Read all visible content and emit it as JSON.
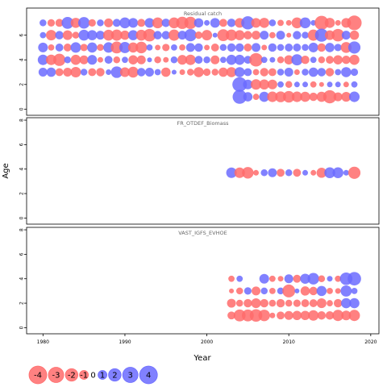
{
  "chart_data": {
    "type": "scatter",
    "xlabel": "Year",
    "ylabel": "Age",
    "xlim": [
      1978,
      2021
    ],
    "x_ticks": [
      1980,
      1990,
      2000,
      2010,
      2020
    ],
    "y_ticks": [
      0,
      2,
      4,
      6,
      8
    ],
    "grid": false,
    "colors": {
      "positive": "#6b6bff",
      "negative": "#ff6b6b"
    },
    "panels": [
      {
        "title": "Residual catch",
        "ylim": [
          -0.5,
          8.2
        ],
        "y_ticks": [
          0,
          2,
          4,
          6
        ],
        "years": [
          1980,
          1981,
          1982,
          1983,
          1984,
          1985,
          1986,
          1987,
          1988,
          1989,
          1990,
          1991,
          1992,
          1993,
          1994,
          1995,
          1996,
          1997,
          1998,
          1999,
          2000,
          2001,
          2002,
          2003,
          2004,
          2005,
          2006,
          2007,
          2008,
          2009,
          2010,
          2011,
          2012,
          2013,
          2014,
          2015,
          2016,
          2017,
          2018
        ],
        "ages": [
          {
            "age": 7,
            "residuals": [
              0.6,
              -0.7,
              -0.8,
              1.8,
              -1.3,
              1.7,
              -0.7,
              0.6,
              -1.0,
              0.8,
              1.5,
              1.2,
              -0.8,
              1.2,
              -1.5,
              0.9,
              -1.5,
              -1.9,
              -1.9,
              1.1,
              0.4,
              1.2,
              -0.8,
              0.9,
              -1.2,
              2.2,
              -1.2,
              -1.3,
              0.6,
              -0.5,
              -0.4,
              -1.5,
              1.5,
              0.4,
              -2.5,
              -1.3,
              -0.4,
              -1.2,
              -2.7
            ]
          },
          {
            "age": 6,
            "residuals": [
              0.5,
              -1.4,
              0.9,
              -1.2,
              -0.6,
              1.5,
              1.3,
              1.0,
              -1.5,
              -1.6,
              -1.1,
              1.3,
              -1.5,
              -2.0,
              0.9,
              0.9,
              -1.6,
              1.0,
              1.9,
              -0.7,
              -1.4,
              0.3,
              -1.8,
              -1.6,
              -1.3,
              -0.9,
              -1.0,
              1.0,
              -0.5,
              1.0,
              -0.3,
              0.9,
              0.6,
              -1.6,
              2.2,
              -1.2,
              -2.0,
              1.0,
              -1.1
            ]
          },
          {
            "age": 5,
            "residuals": [
              1.2,
              -0.5,
              0.8,
              -0.8,
              1.4,
              -0.7,
              1.3,
              -0.6,
              1.4,
              -1.8,
              1.6,
              -1.3,
              -1.7,
              0.5,
              -0.4,
              -0.7,
              0.5,
              -0.5,
              1.0,
              0.9,
              -0.4,
              -0.8,
              0.6,
              0.9,
              0.9,
              -0.8,
              1.0,
              -0.4,
              0.9,
              0.6,
              0.8,
              0.8,
              0.6,
              1.2,
              -0.9,
              1.1,
              0.7,
              -1.5,
              1.9
            ]
          },
          {
            "age": 4,
            "residuals": [
              1.4,
              -1.4,
              -1.9,
              0.6,
              -1.3,
              -1.0,
              1.2,
              -0.4,
              0.8,
              -0.6,
              0.5,
              -1.1,
              -1.0,
              0.3,
              -0.6,
              -0.4,
              0.6,
              -1.2,
              -1.4,
              0.8,
              0.6,
              -1.0,
              0.5,
              1.3,
              1.3,
              0.8,
              -2.3,
              0.5,
              0.4,
              -0.6,
              -1.1,
              1.6,
              -0.9,
              0.5,
              -0.6,
              -0.8,
              -1.1,
              -0.9,
              -1.3
            ]
          },
          {
            "age": 3,
            "residuals": [
              1.0,
              1.1,
              -0.8,
              -1.0,
              -1.4,
              0.6,
              -0.8,
              -0.9,
              0.4,
              1.7,
              -1.2,
              -1.5,
              0.9,
              1.0,
              0.5,
              -1.1,
              0.3,
              -0.4,
              -0.6,
              -1.3,
              -0.7,
              -0.6,
              -1.1,
              -1.3,
              1.3,
              0.8,
              -0.5,
              -0.9,
              -0.8,
              0.6,
              1.0,
              -0.4,
              0.6,
              1.1,
              0.9,
              -0.9,
              0.5,
              1.3,
              0.7
            ]
          },
          {
            "age": 2,
            "residuals": [
              null,
              null,
              null,
              null,
              null,
              null,
              null,
              null,
              null,
              null,
              null,
              null,
              null,
              null,
              null,
              null,
              null,
              null,
              null,
              null,
              null,
              null,
              null,
              null,
              2.7,
              1.2,
              -1.4,
              -1.3,
              -1.2,
              0.5,
              -0.6,
              0.4,
              0.4,
              -0.5,
              -0.3,
              0.4,
              0.4,
              -0.4,
              0.5
            ]
          },
          {
            "age": 1,
            "residuals": [
              null,
              null,
              null,
              null,
              null,
              null,
              null,
              null,
              null,
              null,
              null,
              null,
              null,
              null,
              null,
              null,
              null,
              null,
              null,
              null,
              null,
              null,
              null,
              null,
              2.5,
              1.1,
              -0.5,
              1.3,
              -1.4,
              -1.5,
              -1.7,
              -1.4,
              -1.3,
              -0.9,
              -1.3,
              -2.2,
              -1.0,
              -1.2,
              1.4
            ]
          }
        ]
      },
      {
        "title": "FR_OTDEF_Biomass",
        "ylim": [
          -0.5,
          8.2
        ],
        "y_ticks": [
          0,
          2,
          4,
          6,
          8
        ],
        "years": [
          2003,
          2004,
          2005,
          2006,
          2007,
          2008,
          2009,
          2010,
          2011,
          2012,
          2013,
          2014,
          2015,
          2016,
          2017,
          2018
        ],
        "ages": [
          {
            "age": 3.7,
            "residuals": [
              1.4,
              -1.4,
              -1.7,
              -0.4,
              0.6,
              1.0,
              -0.8,
              0.6,
              -0.8,
              0.4,
              -0.4,
              -1.3,
              1.5,
              1.5,
              0.4,
              -1.9
            ]
          }
        ]
      },
      {
        "title": "VAST_IGFS_EVHOE",
        "ylim": [
          -0.5,
          8.2
        ],
        "y_ticks": [
          0,
          2,
          4,
          6,
          8
        ],
        "years": [
          2003,
          2004,
          2005,
          2006,
          2007,
          2008,
          2009,
          2010,
          2011,
          2012,
          2013,
          2014,
          2015,
          2016,
          2017,
          2018
        ],
        "ages": [
          {
            "age": 4,
            "residuals": [
              -0.5,
              0.5,
              null,
              null,
              1.2,
              -0.5,
              -0.4,
              1.0,
              -0.8,
              1.3,
              1.7,
              -0.6,
              0.4,
              -0.5,
              2.0,
              2.3
            ]
          },
          {
            "age": 3,
            "residuals": [
              -0.3,
              -0.6,
              0.7,
              -1.0,
              0.6,
              -0.5,
              0.6,
              -2.1,
              0.3,
              -1.1,
              -0.9,
              1.3,
              -0.5,
              -0.4,
              1.6,
              0.5
            ]
          },
          {
            "age": 2,
            "residuals": [
              -1.0,
              -0.6,
              -0.9,
              -1.2,
              -0.9,
              -0.6,
              -0.9,
              -0.6,
              -0.7,
              -0.8,
              -0.8,
              -1.2,
              -0.5,
              -0.9,
              1.3,
              1.3
            ]
          },
          {
            "age": 1,
            "residuals": [
              -0.8,
              -1.8,
              -1.8,
              -2.0,
              -1.7,
              -0.4,
              -0.8,
              -1.0,
              -1.1,
              -1.1,
              -1.4,
              -0.9,
              -0.9,
              -1.6,
              -1.2,
              -1.6
            ]
          }
        ]
      }
    ],
    "legend": {
      "placement": "bottom-left",
      "values": [
        -4,
        -3,
        -2,
        -1,
        0,
        1,
        2,
        3,
        4
      ],
      "labels": [
        "-4",
        "-3",
        "-2",
        "-1",
        "0",
        "1",
        "2",
        "3",
        "4"
      ]
    }
  }
}
